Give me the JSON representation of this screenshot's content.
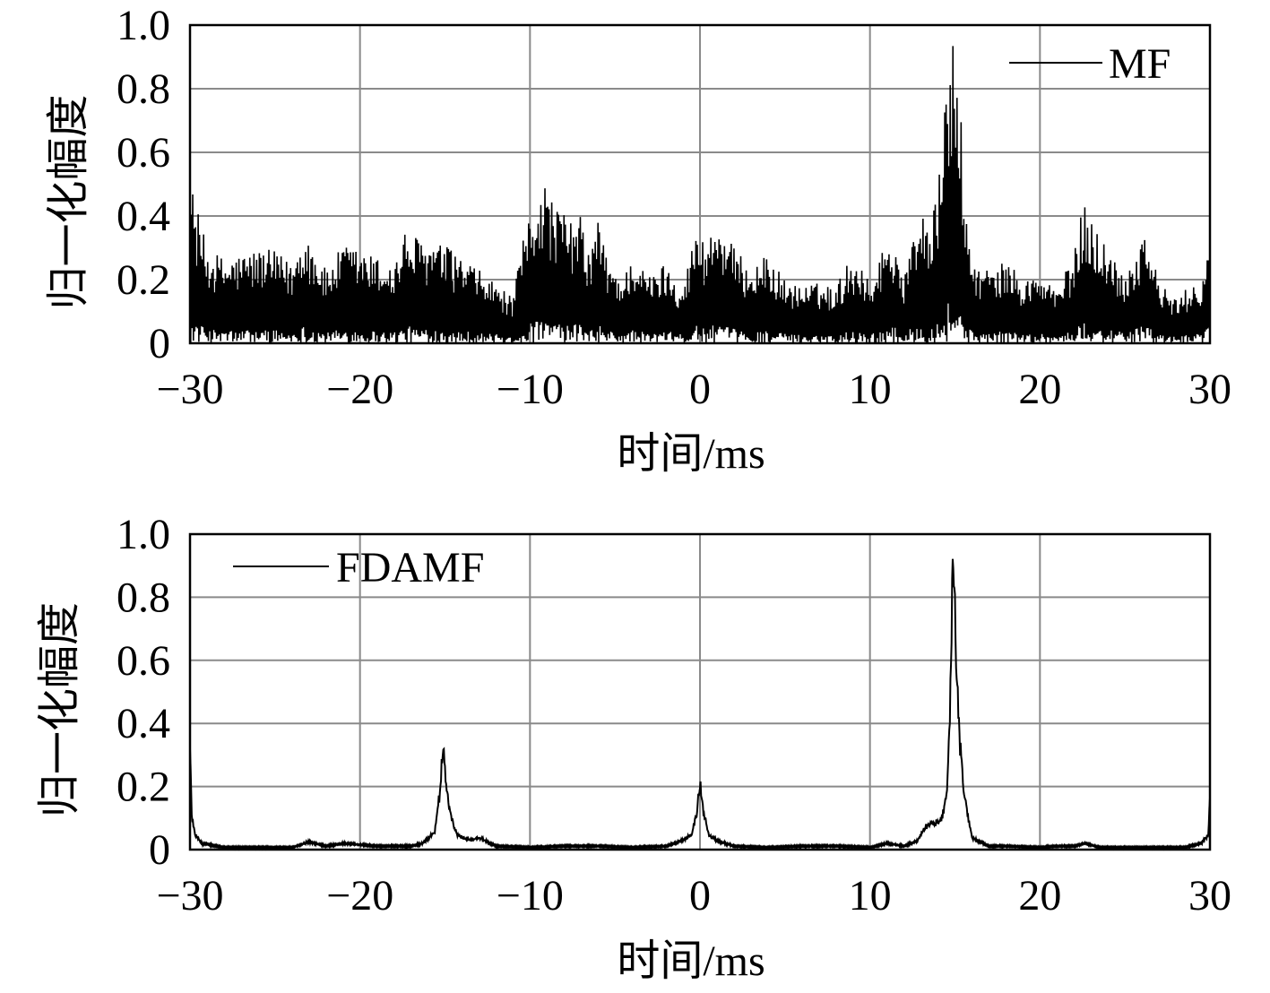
{
  "chart_data": [
    {
      "type": "line",
      "xlabel": "时间/ms",
      "ylabel": "归一化幅度",
      "xlim": [
        -30,
        30
      ],
      "ylim": [
        0,
        1.0
      ],
      "x_ticks": [
        "−30",
        "−20",
        "−10",
        "0",
        "10",
        "20",
        "30"
      ],
      "y_ticks": [
        "0",
        "0.2",
        "0.4",
        "0.6",
        "0.8",
        "1.0"
      ],
      "grid": true,
      "legend_position": "top-right",
      "series": [
        {
          "name": "MF",
          "color": "#000000",
          "style": "dense oscillating sidelobes",
          "x": [
            -30,
            -29.7,
            -29,
            -28,
            -27.2,
            -26,
            -25,
            -24,
            -23.3,
            -22,
            -21,
            -20.2,
            -19,
            -18,
            -17.3,
            -16.5,
            -15,
            -14,
            -13,
            -12,
            -11,
            -10.5,
            -10,
            -9.2,
            -9,
            -8.5,
            -7.8,
            -7,
            -6.5,
            -6,
            -5.5,
            -5,
            -4.5,
            -4,
            -3,
            -2,
            -1,
            -0.2,
            0.3,
            1,
            1.5,
            2,
            3,
            4,
            5,
            6,
            7,
            8,
            8.8,
            9.5,
            10,
            10.7,
            11.5,
            12,
            12.8,
            13.3,
            13.7,
            14.2,
            14.5,
            14.7,
            15,
            15.4,
            15.8,
            16.5,
            17.5,
            18,
            19,
            20,
            21,
            22,
            22.6,
            23,
            24,
            25,
            26,
            26.3,
            27,
            28,
            29,
            29.5,
            30
          ],
          "y": [
            0.53,
            0.45,
            0.3,
            0.27,
            0.28,
            0.3,
            0.29,
            0.25,
            0.37,
            0.23,
            0.31,
            0.3,
            0.27,
            0.25,
            0.36,
            0.33,
            0.31,
            0.27,
            0.23,
            0.19,
            0.14,
            0.3,
            0.42,
            0.54,
            0.48,
            0.45,
            0.39,
            0.4,
            0.28,
            0.41,
            0.27,
            0.24,
            0.2,
            0.29,
            0.21,
            0.26,
            0.18,
            0.37,
            0.32,
            0.4,
            0.36,
            0.3,
            0.24,
            0.28,
            0.2,
            0.18,
            0.19,
            0.18,
            0.27,
            0.26,
            0.18,
            0.3,
            0.34,
            0.2,
            0.42,
            0.41,
            0.4,
            0.58,
            0.82,
            1.0,
            0.94,
            0.68,
            0.3,
            0.24,
            0.23,
            0.27,
            0.2,
            0.22,
            0.17,
            0.28,
            0.46,
            0.4,
            0.3,
            0.22,
            0.35,
            0.36,
            0.19,
            0.14,
            0.19,
            0.2,
            0.35
          ]
        }
      ]
    },
    {
      "type": "line",
      "xlabel": "时间/ms",
      "ylabel": "归一化幅度",
      "xlim": [
        -30,
        30
      ],
      "ylim": [
        0,
        1.0
      ],
      "x_ticks": [
        "−30",
        "−20",
        "−10",
        "0",
        "10",
        "20",
        "30"
      ],
      "y_ticks": [
        "0",
        "0.2",
        "0.4",
        "0.6",
        "0.8",
        "1.0"
      ],
      "grid": true,
      "legend_position": "top-left",
      "series": [
        {
          "name": "FDAMF",
          "color": "#000000",
          "style": "sharp peaks with low floor",
          "x": [
            -30,
            -29.9,
            -29.7,
            -29.3,
            -28,
            -26,
            -24,
            -23,
            -22,
            -21,
            -20,
            -19,
            -18,
            -17,
            -16.3,
            -15.6,
            -15.3,
            -15.1,
            -14.9,
            -14.7,
            -14.3,
            -13.5,
            -13,
            -12,
            -10,
            -8,
            -6,
            -4,
            -2,
            -1,
            -0.5,
            -0.2,
            0,
            0.2,
            0.5,
            1,
            2,
            4,
            6,
            8,
            10,
            11,
            12,
            12.8,
            13.3,
            13.8,
            14.2,
            14.5,
            14.7,
            14.85,
            15.0,
            15.2,
            15.5,
            16,
            17,
            18,
            20,
            21,
            22,
            22.7,
            23.5,
            25,
            27,
            28.5,
            29.5,
            29.9,
            30
          ],
          "y": [
            0.35,
            0.12,
            0.05,
            0.02,
            0.005,
            0.005,
            0.005,
            0.025,
            0.01,
            0.02,
            0.015,
            0.01,
            0.01,
            0.01,
            0.02,
            0.06,
            0.2,
            0.38,
            0.2,
            0.13,
            0.05,
            0.03,
            0.04,
            0.01,
            0.005,
            0.01,
            0.01,
            0.005,
            0.01,
            0.03,
            0.05,
            0.12,
            0.23,
            0.14,
            0.05,
            0.03,
            0.01,
            0.005,
            0.01,
            0.01,
            0.005,
            0.02,
            0.01,
            0.03,
            0.08,
            0.09,
            0.1,
            0.19,
            0.42,
            1.0,
            0.83,
            0.45,
            0.2,
            0.04,
            0.01,
            0.01,
            0.005,
            0.01,
            0.01,
            0.02,
            0.005,
            0.005,
            0.005,
            0.005,
            0.02,
            0.05,
            0.18
          ]
        }
      ]
    }
  ]
}
